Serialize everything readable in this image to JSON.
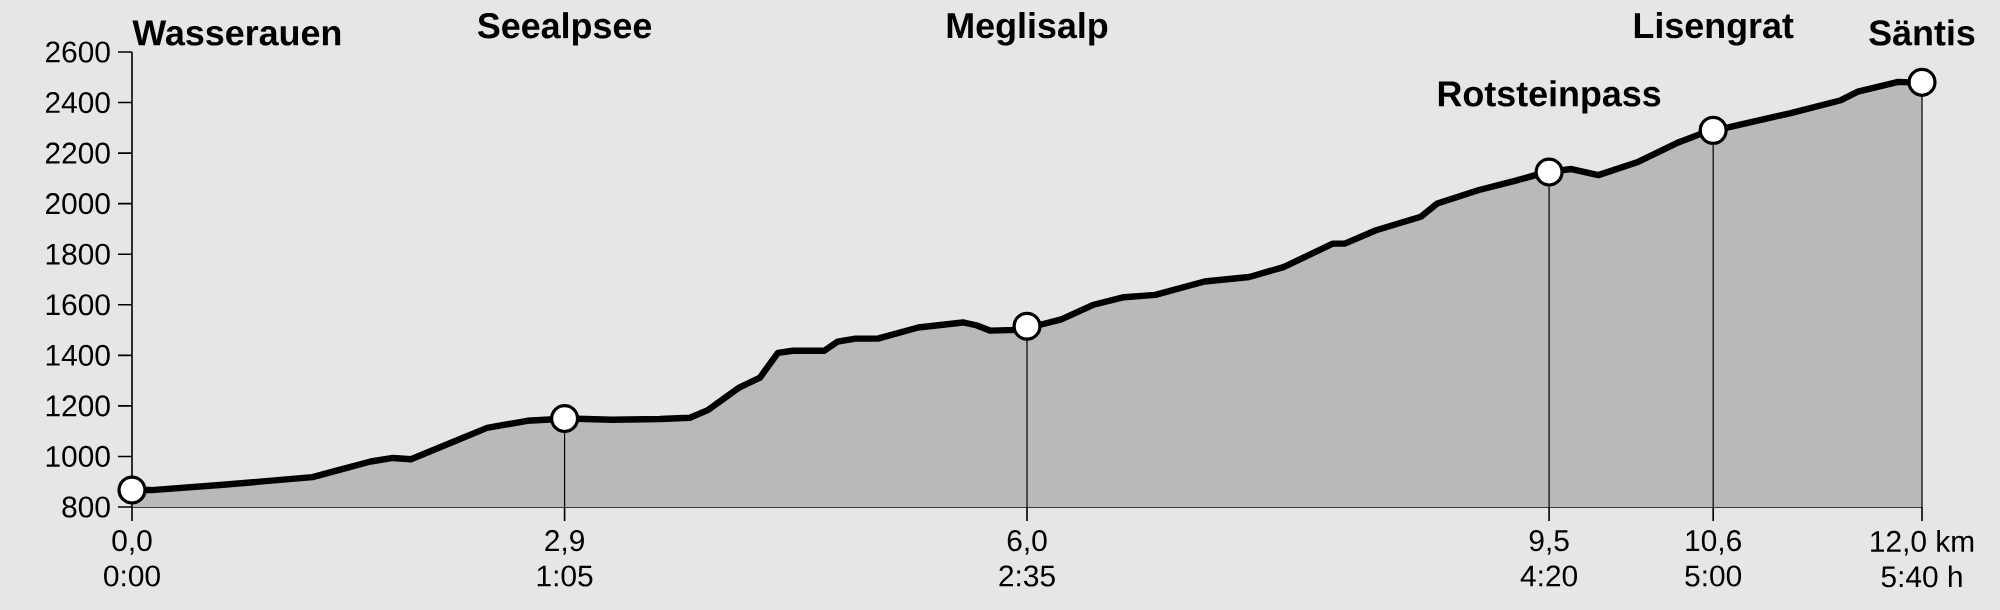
{
  "chart_data": {
    "type": "area",
    "xlim": [
      0,
      12
    ],
    "ylim": [
      800,
      2600
    ],
    "yticks": [
      800,
      1000,
      1200,
      1400,
      1600,
      1800,
      2000,
      2200,
      2400,
      2600
    ],
    "xticks": [
      {
        "value": 0,
        "label": "0,0"
      },
      {
        "value": 2.9,
        "label": "2,9"
      },
      {
        "value": 6,
        "label": "6,0"
      },
      {
        "value": 9.5,
        "label": "9,5"
      },
      {
        "value": 10.6,
        "label": "10,6"
      },
      {
        "value": 12,
        "label": "12,0 km"
      }
    ],
    "series": [
      {
        "color": "#b9b9b9",
        "x": [
          0,
          0.13,
          0.61,
          1.21,
          1.39,
          1.6,
          1.75,
          1.87,
          2.11,
          2.38,
          2.65,
          2.92,
          3.22,
          3.54,
          3.74,
          3.86,
          4.07,
          4.21,
          4.33,
          4.43,
          4.64,
          4.73,
          4.85,
          5.0,
          5.27,
          5.57,
          5.66,
          5.75,
          5.96,
          6.05,
          6.23,
          6.44,
          6.65,
          6.86,
          7.19,
          7.49,
          7.72,
          8.05,
          8.13,
          8.34,
          8.64,
          8.75,
          9.03,
          9.27,
          9.48,
          9.65,
          9.83,
          10.1,
          10.37,
          10.57,
          10.7,
          11.12,
          11.45,
          11.57,
          11.84,
          12.0
        ],
        "values": [
          867,
          867,
          888,
          918,
          947,
          980,
          994,
          989,
          1047,
          1113,
          1141,
          1150,
          1145,
          1148,
          1153,
          1183,
          1272,
          1312,
          1410,
          1418,
          1418,
          1454,
          1466,
          1466,
          1510,
          1530,
          1519,
          1498,
          1501,
          1515,
          1542,
          1599,
          1630,
          1639,
          1692,
          1710,
          1749,
          1842,
          1842,
          1895,
          1948,
          2001,
          2054,
          2090,
          2125,
          2137,
          2113,
          2166,
          2243,
          2288,
          2302,
          2358,
          2408,
          2443,
          2482,
          2478
        ]
      },
      {
        "type": "lollipop",
        "color": "#ffffff",
        "x": [
          0,
          2.9,
          6,
          9.5,
          10.6,
          12
        ],
        "values": [
          867,
          1150,
          1515,
          2125,
          2290,
          2480
        ]
      }
    ],
    "annotations": [
      "Wasserauen",
      "Seealpsee",
      "Meglisalp",
      "Rotsteinpass",
      "Lisengrat",
      "Säntis",
      "0:00",
      "1:05",
      "2:35",
      "4:20",
      "5:00",
      "5:40 h"
    ]
  }
}
